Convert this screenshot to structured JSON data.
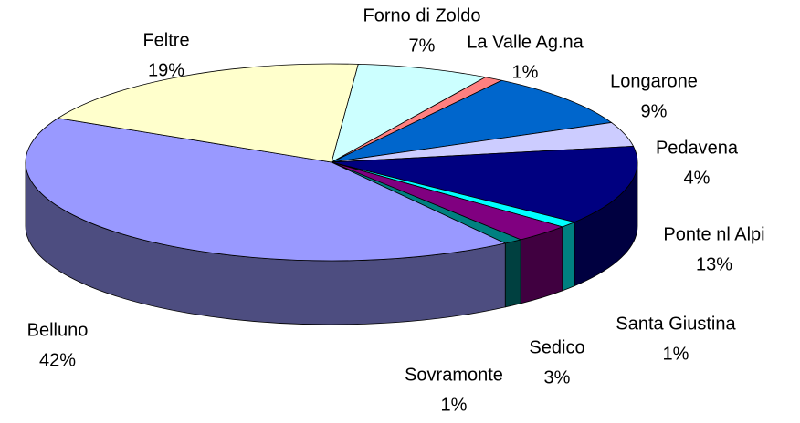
{
  "chart_data": {
    "type": "pie",
    "categories": [
      "Forno di Zoldo",
      "La Valle Ag.na",
      "Longarone",
      "Pedavena",
      "Ponte nl Alpi",
      "Santa Giustina",
      "Sedico",
      "Sovramonte",
      "Belluno",
      "Feltre"
    ],
    "values": [
      7,
      1,
      9,
      4,
      13,
      1,
      3,
      1,
      42,
      19
    ],
    "value_labels": [
      "7%",
      "1%",
      "9%",
      "4%",
      "13%",
      "1%",
      "3%",
      "1%",
      "42%",
      "19%"
    ],
    "colors": [
      "#ccffff",
      "#ff8080",
      "#0066cc",
      "#ccccff",
      "#000080",
      "#00ffff",
      "#800080",
      "#008080",
      "#9999ff",
      "#ffffcc"
    ]
  }
}
